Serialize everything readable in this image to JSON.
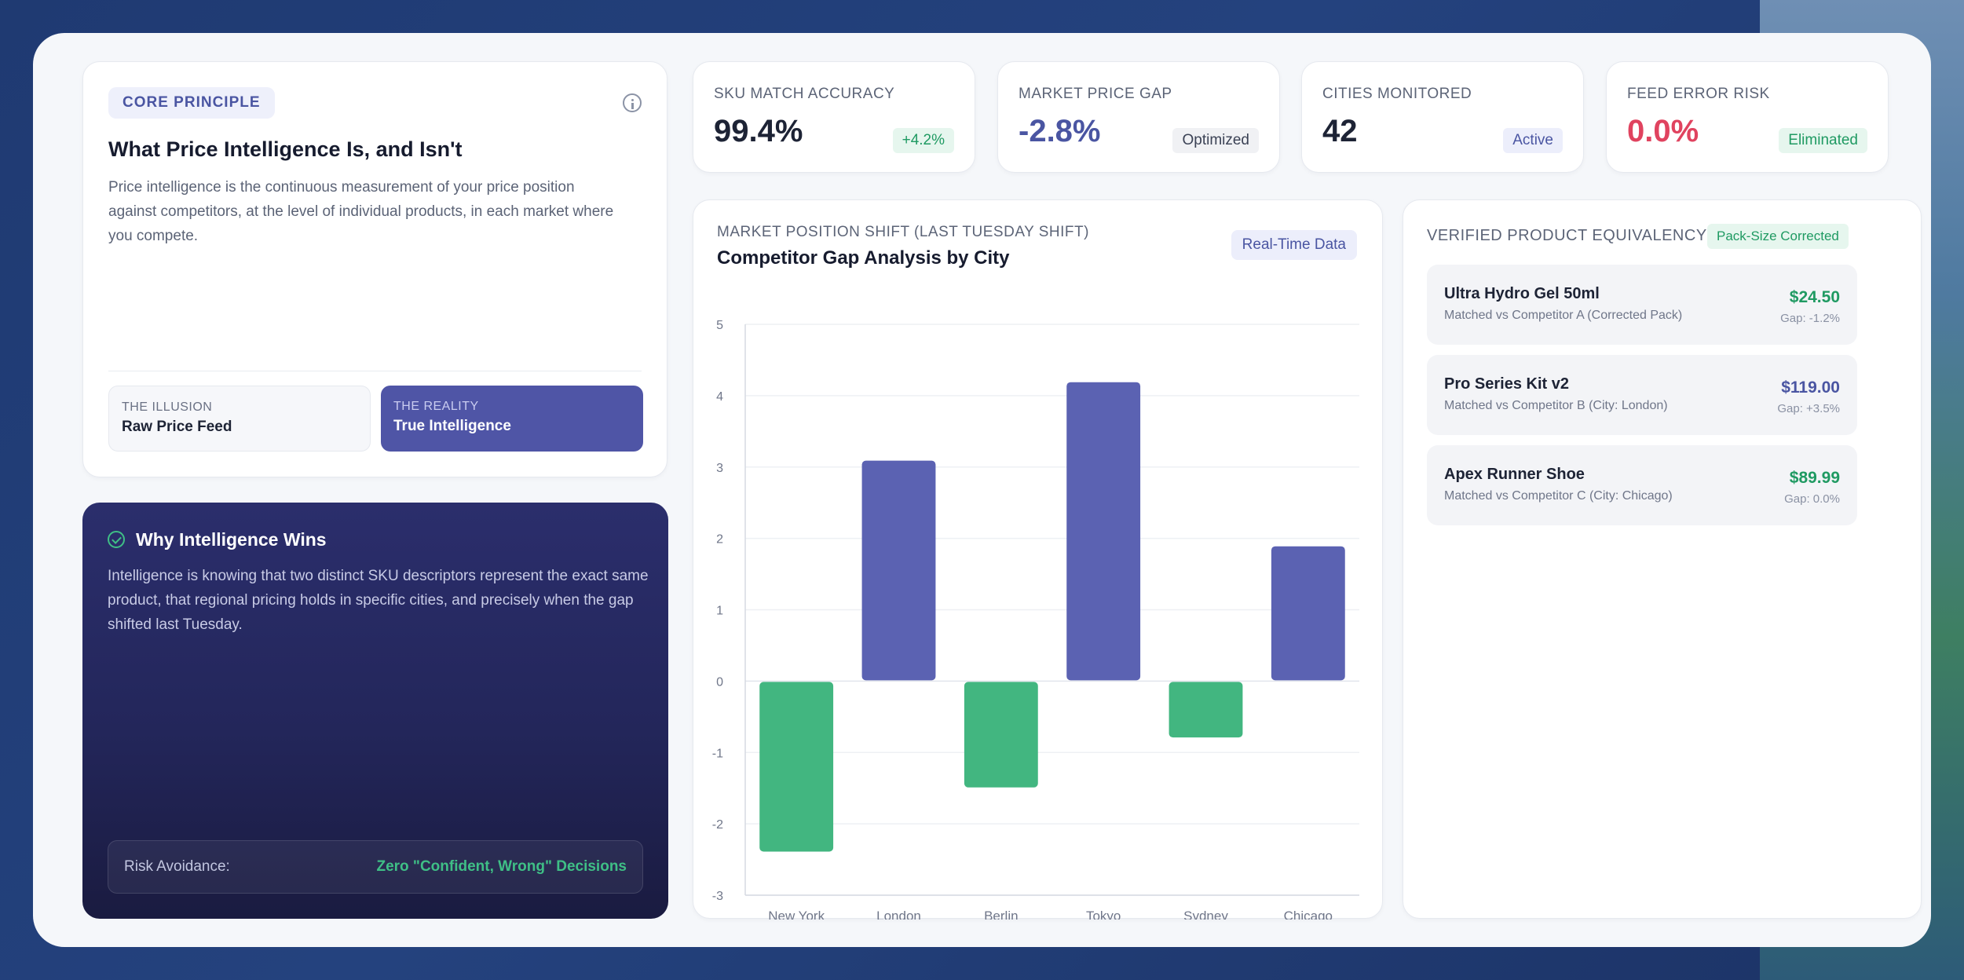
{
  "core": {
    "label": "CORE PRINCIPLE",
    "title": "What Price Intelligence Is, and Isn't",
    "description": "Price intelligence is the continuous measurement of your price position against competitors, at the level of individual products, in each market where you compete.",
    "illusion": {
      "label": "THE ILLUSION",
      "value": "Raw Price Feed"
    },
    "reality": {
      "label": "THE REALITY",
      "value": "True Intelligence"
    }
  },
  "why": {
    "title": "Why Intelligence Wins",
    "description": "Intelligence is knowing that two distinct SKU descriptors represent the exact same product, that regional pricing holds in specific cities, and precisely when the gap shifted last Tuesday.",
    "risk_label": "Risk Avoidance:",
    "risk_value": "Zero \"Confident, Wrong\" Decisions"
  },
  "metrics": [
    {
      "label": "SKU MATCH ACCURACY",
      "value": "99.4%",
      "badge": "+4.2%",
      "value_color": "#1d2335",
      "badge_bg": "#e6f6ee",
      "badge_color": "#1f9a62"
    },
    {
      "label": "MARKET PRICE GAP",
      "value": "-2.8%",
      "badge": "Optimized",
      "value_color": "#4a55a2",
      "badge_bg": "#f0f1f4",
      "badge_color": "#3b4255"
    },
    {
      "label": "CITIES MONITORED",
      "value": "42",
      "badge": "Active",
      "value_color": "#1d2335",
      "badge_bg": "#eceefb",
      "badge_color": "#4a55a2"
    },
    {
      "label": "FEED ERROR RISK",
      "value": "0.0%",
      "badge": "Eliminated",
      "value_color": "#e0435f",
      "badge_bg": "#e6f6ee",
      "badge_color": "#1f9a62"
    }
  ],
  "chart": {
    "kicker": "MARKET POSITION SHIFT (LAST TUESDAY SHIFT)",
    "title": "Competitor Gap Analysis by City",
    "badge": "Real-Time Data"
  },
  "chart_data": {
    "type": "bar",
    "categories": [
      "New York",
      "London",
      "Berlin",
      "Tokyo",
      "Sydney",
      "Chicago"
    ],
    "values": [
      -2.4,
      3.1,
      -1.5,
      4.2,
      -0.8,
      1.9
    ],
    "ylim": [
      -3,
      5
    ],
    "yticks": [
      "5",
      "4",
      "3",
      "2",
      "1",
      "0",
      "-1",
      "-2",
      "-3"
    ],
    "ytick_values": [
      5,
      4,
      3,
      2,
      1,
      0,
      -1,
      -2,
      -3
    ],
    "grid": true,
    "positive_color": "#5b62b2",
    "negative_color": "#42b680"
  },
  "equivalency": {
    "title": "VERIFIED PRODUCT EQUIVALENCY",
    "badge": "Pack-Size Corrected",
    "products": [
      {
        "name": "Ultra Hydro Gel 50ml",
        "match": "Matched vs Competitor A (Corrected Pack)",
        "price": "$24.50",
        "gap": "Gap: -1.2%",
        "price_color": "#1f9a62"
      },
      {
        "name": "Pro Series Kit v2",
        "match": "Matched vs Competitor B (City: London)",
        "price": "$119.00",
        "gap": "Gap: +3.5%",
        "price_color": "#4a55a2"
      },
      {
        "name": "Apex Runner Shoe",
        "match": "Matched vs Competitor C (City: Chicago)",
        "price": "$89.99",
        "gap": "Gap: 0.0%",
        "price_color": "#1f9a62"
      }
    ]
  }
}
